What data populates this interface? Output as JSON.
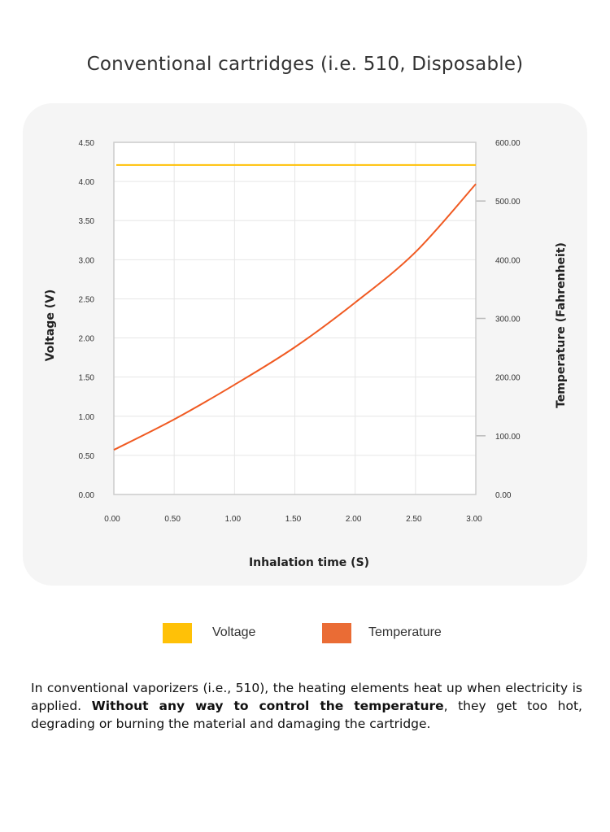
{
  "title": "Conventional cartridges (i.e. 510, Disposable)",
  "colors": {
    "voltage": "#FFC107",
    "temperature": "#F05A22",
    "legend_temperature": "#EA6C35",
    "panel": "#f5f5f5",
    "grid": "#e6e6e6"
  },
  "chart_data": {
    "type": "line",
    "title": "",
    "xlabel": "Inhalation time (S)",
    "ylabel": "Voltage (V)",
    "ylabel_right": "Temperature (Fahrenheit)",
    "xlim": [
      0,
      3
    ],
    "ylim": [
      0,
      4.5
    ],
    "ylim_right": [
      0,
      600
    ],
    "grid": true,
    "legend": "bottom",
    "x_ticks": [
      "0.00",
      "0.50",
      "1.00",
      "1.50",
      "2.00",
      "2.50",
      "3.00"
    ],
    "y_ticks": [
      "0.00",
      "0.50",
      "1.00",
      "1.50",
      "2.00",
      "2.50",
      "3.00",
      "3.50",
      "4.00",
      "4.50"
    ],
    "y_right_ticks": [
      "0.00",
      "100.00",
      "200.00",
      "300.00",
      "400.00",
      "500.00",
      "600.00"
    ],
    "series": [
      {
        "name": "Voltage",
        "axis": "left",
        "x": [
          0,
          3
        ],
        "values": [
          4.21,
          4.21
        ]
      },
      {
        "name": "Temperature",
        "axis": "right",
        "x": [
          0,
          0.5,
          1.0,
          1.5,
          2.0,
          2.5,
          3.0
        ],
        "values": [
          76,
          128,
          187,
          251,
          327,
          413,
          529
        ]
      }
    ]
  },
  "legend": {
    "voltage": "Voltage",
    "temperature": "Temperature"
  },
  "paragraph": {
    "part1": "In conventional vaporizers (i.e., 510), the heating elements heat up when electricity is applied. ",
    "bold": "Without any way to control the temperature",
    "part2": ", they get too hot, degrading or burning the material and damaging the cartridge."
  }
}
